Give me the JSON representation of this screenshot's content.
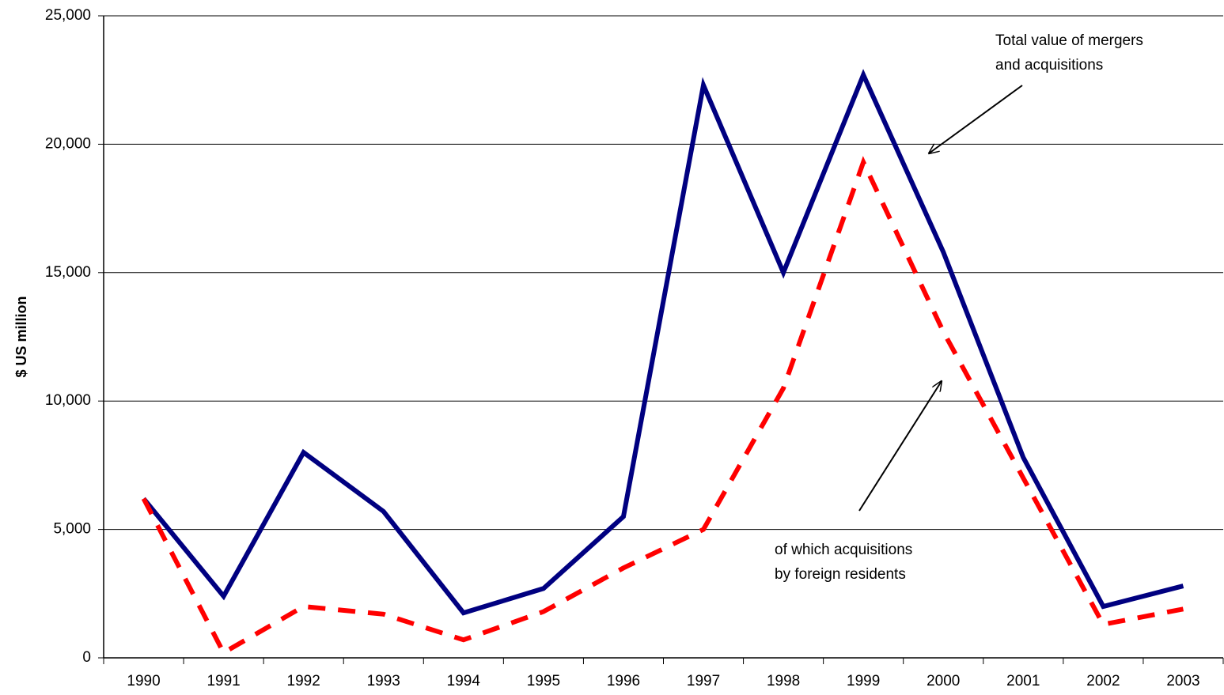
{
  "chart_data": {
    "type": "line",
    "y_label": "$ US million",
    "categories": [
      "1990",
      "1991",
      "1992",
      "1993",
      "1994",
      "1995",
      "1996",
      "1997",
      "1998",
      "1999",
      "2000",
      "2001",
      "2002",
      "2003"
    ],
    "series": [
      {
        "name": "Total value of mergers and acquisitions",
        "color": "#000080",
        "style": "solid",
        "values": [
          6200,
          2400,
          8000,
          5700,
          1750,
          2700,
          5500,
          22300,
          15000,
          22700,
          15800,
          7800,
          2000,
          2800
        ]
      },
      {
        "name": "of which acquisitions by foreign residents",
        "color": "#ff0000",
        "style": "dashed",
        "values": [
          6200,
          200,
          2000,
          1700,
          700,
          1800,
          3500,
          5000,
          10500,
          19300,
          12700,
          7000,
          1300,
          1900
        ]
      }
    ],
    "annotations": [
      {
        "lines": [
          "Total value of mergers",
          "and acquisitions"
        ]
      },
      {
        "lines": [
          "of which acquisitions",
          "by foreign residents"
        ]
      }
    ],
    "ylim": [
      0,
      25000
    ],
    "yticks": [
      0,
      {
        "value": 5000,
        "label": "5,000"
      },
      {
        "value": 10000,
        "label": "10,000"
      },
      {
        "value": 15000,
        "label": "15,000"
      },
      {
        "value": 20000,
        "label": "20,000"
      },
      {
        "value": 25000,
        "label": "25,000"
      }
    ],
    "grid": true
  }
}
